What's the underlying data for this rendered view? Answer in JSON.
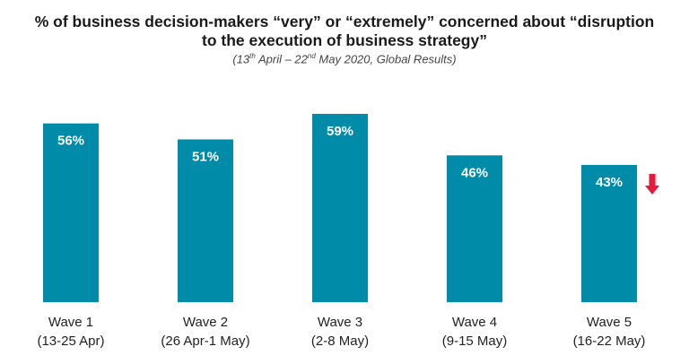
{
  "chart_data": {
    "type": "bar",
    "title_line1": "% of business decision-makers “very” or “extremely” concerned about “disruption",
    "title_line2": "to the execution of business strategy”",
    "subtitle_pre": "(13",
    "subtitle_sup1": "th",
    "subtitle_mid": " April – 22",
    "subtitle_sup2": "nd",
    "subtitle_post": " May 2020, Global Results)",
    "categories": [
      "Wave 1",
      "Wave 2",
      "Wave 3",
      "Wave 4",
      "Wave 5"
    ],
    "category_subtitles": [
      "(13-25 Apr)",
      "(26 Apr-1 May)",
      "(2-8 May)",
      "(9-15 May)",
      "(16-22 May)"
    ],
    "values": [
      56,
      51,
      59,
      46,
      43
    ],
    "data_labels": [
      "56%",
      "51%",
      "59%",
      "46%",
      "43%"
    ],
    "ylim": [
      0,
      59
    ],
    "xlabel": "",
    "ylabel": "",
    "grid": false,
    "bar_color": "#008ca8",
    "indicator": {
      "category_index": 4,
      "direction": "down",
      "color": "#e8193c",
      "icon": "down-arrow-icon"
    }
  }
}
